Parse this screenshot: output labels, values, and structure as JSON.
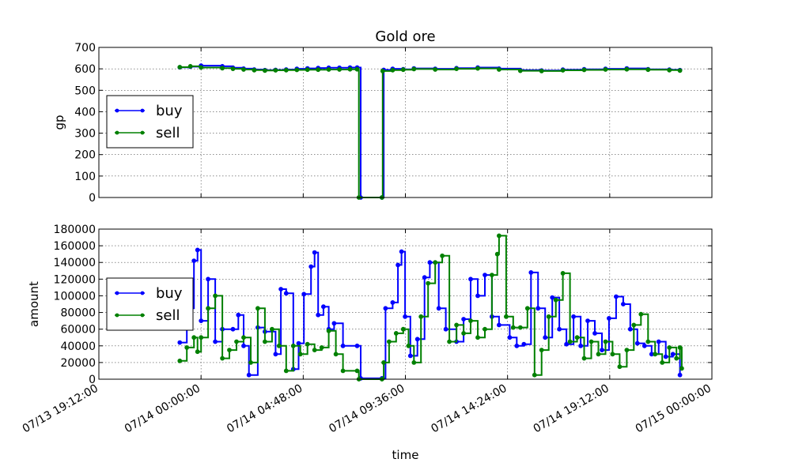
{
  "chart_data": [
    {
      "type": "line",
      "title": "Gold ore",
      "xlabel": "",
      "ylabel": "gp",
      "ylim": [
        0,
        700
      ],
      "yticks": [
        0,
        100,
        200,
        300,
        400,
        500,
        600,
        700
      ],
      "xlim": [
        "07/13 19:12:00",
        "07/15 00:00:00"
      ],
      "x_tick_labels_visible": false,
      "grid": true,
      "legend": {
        "placement": "center-left",
        "entries": [
          "buy",
          "sell"
        ]
      },
      "series": [
        {
          "name": "buy",
          "color": "#0000ff",
          "points": [
            [
              "07/13 23:00",
              607
            ],
            [
              "07/13 23:30",
              610
            ],
            [
              "07/14 00:00",
              615
            ],
            [
              "07/14 01:00",
              612
            ],
            [
              "07/14 01:30",
              605
            ],
            [
              "07/14 02:00",
              601
            ],
            [
              "07/14 02:30",
              597
            ],
            [
              "07/14 03:00",
              594
            ],
            [
              "07/14 03:30",
              595
            ],
            [
              "07/14 04:00",
              597
            ],
            [
              "07/14 04:30",
              600
            ],
            [
              "07/14 05:00",
              602
            ],
            [
              "07/14 05:30",
              604
            ],
            [
              "07/14 06:00",
              605
            ],
            [
              "07/14 06:30",
              605
            ],
            [
              "07/14 07:00",
              606
            ],
            [
              "07/14 07:20",
              606
            ],
            [
              "07/14 07:30",
              0
            ],
            [
              "07/14 08:30",
              0
            ],
            [
              "07/14 08:35",
              595
            ],
            [
              "07/14 09:00",
              600
            ],
            [
              "07/14 09:30",
              598
            ],
            [
              "07/14 10:00",
              602
            ],
            [
              "07/14 11:00",
              600
            ],
            [
              "07/14 12:00",
              603
            ],
            [
              "07/14 13:00",
              606
            ],
            [
              "07/14 14:00",
              601
            ],
            [
              "07/14 15:00",
              594
            ],
            [
              "07/14 16:00",
              592
            ],
            [
              "07/14 17:00",
              596
            ],
            [
              "07/14 18:00",
              598
            ],
            [
              "07/14 19:00",
              600
            ],
            [
              "07/14 20:00",
              602
            ],
            [
              "07/14 21:00",
              598
            ],
            [
              "07/14 22:00",
              596
            ],
            [
              "07/14 22:30",
              594
            ]
          ]
        },
        {
          "name": "sell",
          "color": "#008000",
          "points": [
            [
              "07/13 23:00",
              608
            ],
            [
              "07/13 23:30",
              612
            ],
            [
              "07/14 00:00",
              606
            ],
            [
              "07/14 01:00",
              603
            ],
            [
              "07/14 01:30",
              600
            ],
            [
              "07/14 02:00",
              597
            ],
            [
              "07/14 02:30",
              594
            ],
            [
              "07/14 03:00",
              592
            ],
            [
              "07/14 03:30",
              593
            ],
            [
              "07/14 04:00",
              594
            ],
            [
              "07/14 04:30",
              595
            ],
            [
              "07/14 05:00",
              596
            ],
            [
              "07/14 05:30",
              596
            ],
            [
              "07/14 06:00",
              597
            ],
            [
              "07/14 06:30",
              597
            ],
            [
              "07/14 07:00",
              598
            ],
            [
              "07/14 07:20",
              598
            ],
            [
              "07/14 07:25",
              0
            ],
            [
              "07/14 08:30",
              0
            ],
            [
              "07/14 08:32",
              590
            ],
            [
              "07/14 09:00",
              594
            ],
            [
              "07/14 09:30",
              596
            ],
            [
              "07/14 10:00",
              599
            ],
            [
              "07/14 11:00",
              597
            ],
            [
              "07/14 12:00",
              600
            ],
            [
              "07/14 13:00",
              602
            ],
            [
              "07/14 14:00",
              597
            ],
            [
              "07/14 15:00",
              591
            ],
            [
              "07/14 16:00",
              590
            ],
            [
              "07/14 17:00",
              593
            ],
            [
              "07/14 18:00",
              595
            ],
            [
              "07/14 19:00",
              597
            ],
            [
              "07/14 20:00",
              598
            ],
            [
              "07/14 21:00",
              596
            ],
            [
              "07/14 22:00",
              594
            ],
            [
              "07/14 22:30",
              592
            ]
          ]
        }
      ]
    },
    {
      "type": "line",
      "title": "",
      "xlabel": "time",
      "ylabel": "amount",
      "ylim": [
        0,
        180000
      ],
      "yticks": [
        0,
        20000,
        40000,
        60000,
        80000,
        100000,
        120000,
        140000,
        160000,
        180000
      ],
      "xlim": [
        "07/13 19:12:00",
        "07/15 00:00:00"
      ],
      "xticks": [
        "07/13 19:12:00",
        "07/14 00:00:00",
        "07/14 04:48:00",
        "07/14 09:36:00",
        "07/14 14:24:00",
        "07/14 19:12:00",
        "07/15 00:00:00"
      ],
      "grid": true,
      "legend": {
        "placement": "center-left",
        "entries": [
          "buy",
          "sell"
        ]
      },
      "series": [
        {
          "name": "buy",
          "color": "#0000ff",
          "points": [
            [
              "07/13 23:00",
              44000
            ],
            [
              "07/13 23:20",
              85000
            ],
            [
              "07/13 23:40",
              142000
            ],
            [
              "07/13 23:50",
              155000
            ],
            [
              "07/14 00:00",
              70000
            ],
            [
              "07/14 00:20",
              120000
            ],
            [
              "07/14 00:40",
              45000
            ],
            [
              "07/14 01:00",
              60000
            ],
            [
              "07/14 01:30",
              60000
            ],
            [
              "07/14 01:45",
              77000
            ],
            [
              "07/14 02:00",
              40000
            ],
            [
              "07/14 02:15",
              5000
            ],
            [
              "07/14 02:40",
              62000
            ],
            [
              "07/14 03:00",
              57000
            ],
            [
              "07/14 03:30",
              30000
            ],
            [
              "07/14 03:45",
              108000
            ],
            [
              "07/14 04:00",
              103000
            ],
            [
              "07/14 04:20",
              12000
            ],
            [
              "07/14 04:35",
              43000
            ],
            [
              "07/14 04:50",
              102000
            ],
            [
              "07/14 05:10",
              135000
            ],
            [
              "07/14 05:20",
              152000
            ],
            [
              "07/14 05:30",
              77000
            ],
            [
              "07/14 05:45",
              87000
            ],
            [
              "07/14 06:00",
              60000
            ],
            [
              "07/14 06:15",
              67000
            ],
            [
              "07/14 06:40",
              40000
            ],
            [
              "07/14 07:20",
              40000
            ],
            [
              "07/14 07:30",
              1000
            ],
            [
              "07/14 08:30",
              1000
            ],
            [
              "07/14 08:40",
              85000
            ],
            [
              "07/14 09:00",
              92000
            ],
            [
              "07/14 09:15",
              137000
            ],
            [
              "07/14 09:25",
              153000
            ],
            [
              "07/14 09:35",
              75000
            ],
            [
              "07/14 09:50",
              28000
            ],
            [
              "07/14 10:10",
              48000
            ],
            [
              "07/14 10:30",
              122000
            ],
            [
              "07/14 10:45",
              140000
            ],
            [
              "07/14 11:10",
              85000
            ],
            [
              "07/14 11:30",
              60000
            ],
            [
              "07/14 12:00",
              45000
            ],
            [
              "07/14 12:20",
              72000
            ],
            [
              "07/14 12:40",
              120000
            ],
            [
              "07/14 13:00",
              100000
            ],
            [
              "07/14 13:20",
              125000
            ],
            [
              "07/14 13:40",
              75000
            ],
            [
              "07/14 14:00",
              65000
            ],
            [
              "07/14 14:30",
              50000
            ],
            [
              "07/14 14:50",
              40000
            ],
            [
              "07/14 15:10",
              42000
            ],
            [
              "07/14 15:30",
              128000
            ],
            [
              "07/14 15:50",
              85000
            ],
            [
              "07/14 16:10",
              50000
            ],
            [
              "07/14 16:30",
              98000
            ],
            [
              "07/14 16:50",
              60000
            ],
            [
              "07/14 17:10",
              42000
            ],
            [
              "07/14 17:30",
              75000
            ],
            [
              "07/14 17:50",
              40000
            ],
            [
              "07/14 18:10",
              70000
            ],
            [
              "07/14 18:30",
              55000
            ],
            [
              "07/14 18:50",
              35000
            ],
            [
              "07/14 19:10",
              73000
            ],
            [
              "07/14 19:30",
              99000
            ],
            [
              "07/14 19:50",
              90000
            ],
            [
              "07/14 20:10",
              60000
            ],
            [
              "07/14 20:30",
              43000
            ],
            [
              "07/14 20:50",
              40000
            ],
            [
              "07/14 21:10",
              30000
            ],
            [
              "07/14 21:30",
              45000
            ],
            [
              "07/14 21:50",
              27000
            ],
            [
              "07/14 22:10",
              30000
            ],
            [
              "07/14 22:30",
              5000
            ]
          ]
        },
        {
          "name": "sell",
          "color": "#008000",
          "points": [
            [
              "07/13 23:00",
              22000
            ],
            [
              "07/13 23:20",
              38000
            ],
            [
              "07/13 23:40",
              50000
            ],
            [
              "07/13 23:50",
              33000
            ],
            [
              "07/14 00:00",
              50000
            ],
            [
              "07/14 00:20",
              85000
            ],
            [
              "07/14 00:40",
              100000
            ],
            [
              "07/14 01:00",
              25000
            ],
            [
              "07/14 01:20",
              35000
            ],
            [
              "07/14 01:40",
              45000
            ],
            [
              "07/14 02:00",
              50000
            ],
            [
              "07/14 02:20",
              20000
            ],
            [
              "07/14 02:40",
              85000
            ],
            [
              "07/14 03:00",
              45000
            ],
            [
              "07/14 03:20",
              60000
            ],
            [
              "07/14 03:40",
              40000
            ],
            [
              "07/14 04:00",
              10000
            ],
            [
              "07/14 04:20",
              40000
            ],
            [
              "07/14 04:40",
              30000
            ],
            [
              "07/14 05:00",
              42000
            ],
            [
              "07/14 05:20",
              35000
            ],
            [
              "07/14 05:40",
              38000
            ],
            [
              "07/14 06:00",
              58000
            ],
            [
              "07/14 06:20",
              30000
            ],
            [
              "07/14 06:40",
              10000
            ],
            [
              "07/14 07:20",
              10000
            ],
            [
              "07/14 07:25",
              0
            ],
            [
              "07/14 08:30",
              0
            ],
            [
              "07/14 08:35",
              20000
            ],
            [
              "07/14 08:50",
              45000
            ],
            [
              "07/14 09:10",
              55000
            ],
            [
              "07/14 09:30",
              60000
            ],
            [
              "07/14 09:45",
              40000
            ],
            [
              "07/14 10:00",
              20000
            ],
            [
              "07/14 10:20",
              75000
            ],
            [
              "07/14 10:40",
              115000
            ],
            [
              "07/14 11:00",
              140000
            ],
            [
              "07/14 11:20",
              148000
            ],
            [
              "07/14 11:40",
              45000
            ],
            [
              "07/14 12:00",
              65000
            ],
            [
              "07/14 12:20",
              55000
            ],
            [
              "07/14 12:40",
              70000
            ],
            [
              "07/14 13:00",
              50000
            ],
            [
              "07/14 13:20",
              60000
            ],
            [
              "07/14 13:40",
              125000
            ],
            [
              "07/14 13:55",
              150000
            ],
            [
              "07/14 14:00",
              172000
            ],
            [
              "07/14 14:20",
              75000
            ],
            [
              "07/14 14:40",
              62000
            ],
            [
              "07/14 15:00",
              62000
            ],
            [
              "07/14 15:20",
              85000
            ],
            [
              "07/14 15:40",
              5000
            ],
            [
              "07/14 16:00",
              35000
            ],
            [
              "07/14 16:20",
              75000
            ],
            [
              "07/14 16:40",
              95000
            ],
            [
              "07/14 17:00",
              127000
            ],
            [
              "07/14 17:20",
              45000
            ],
            [
              "07/14 17:40",
              50000
            ],
            [
              "07/14 18:00",
              25000
            ],
            [
              "07/14 18:20",
              45000
            ],
            [
              "07/14 18:40",
              30000
            ],
            [
              "07/14 19:00",
              45000
            ],
            [
              "07/14 19:20",
              30000
            ],
            [
              "07/14 19:40",
              15000
            ],
            [
              "07/14 20:00",
              35000
            ],
            [
              "07/14 20:20",
              65000
            ],
            [
              "07/14 20:40",
              78000
            ],
            [
              "07/14 21:00",
              45000
            ],
            [
              "07/14 21:20",
              30000
            ],
            [
              "07/14 21:40",
              20000
            ],
            [
              "07/14 22:00",
              38000
            ],
            [
              "07/14 22:20",
              25000
            ],
            [
              "07/14 22:30",
              38000
            ],
            [
              "07/14 22:35",
              13000
            ]
          ]
        }
      ]
    }
  ]
}
